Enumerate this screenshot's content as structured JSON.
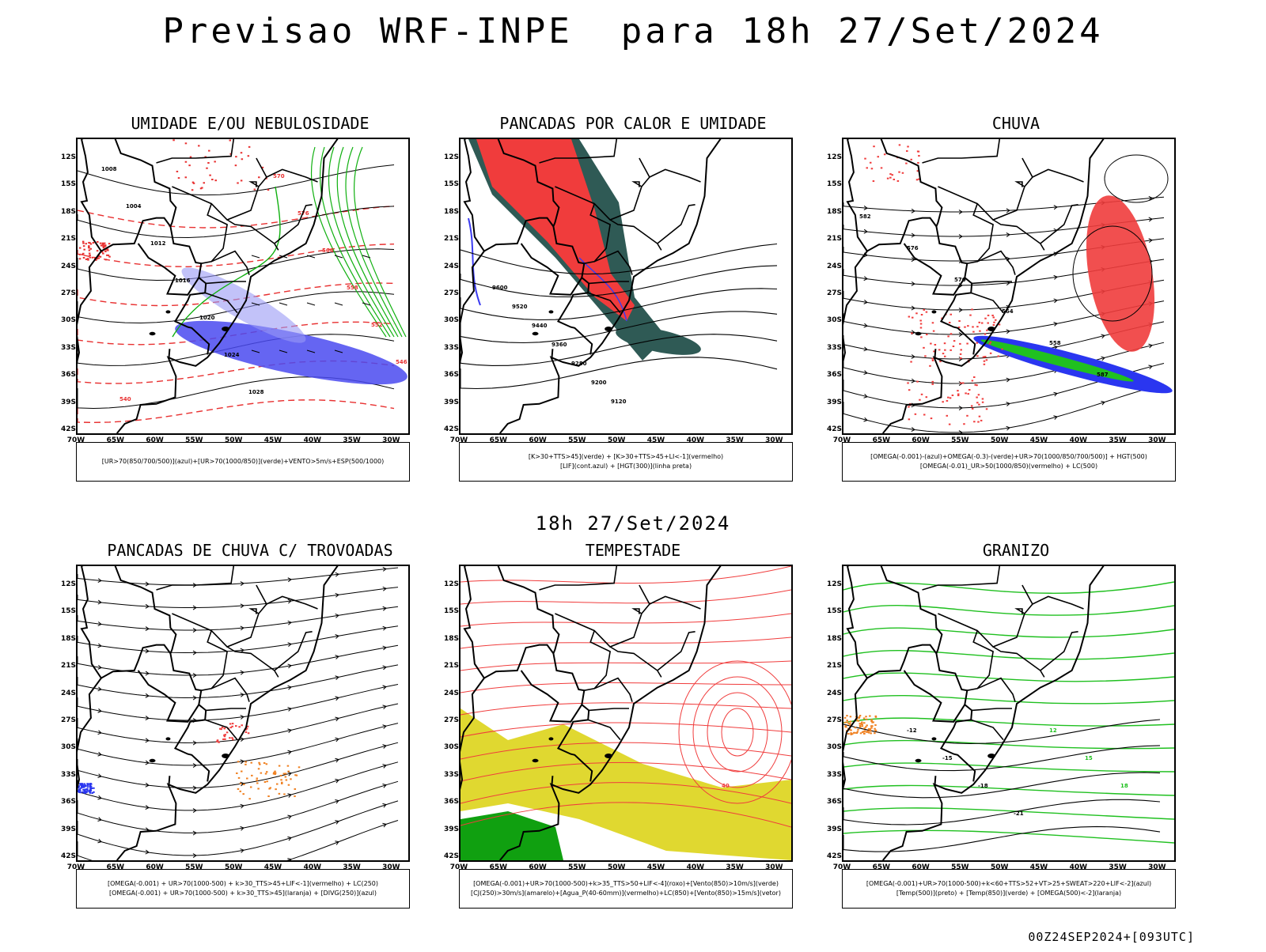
{
  "header": {
    "title": "Previsao WRF-INPE  para 18h 27/Set/2024"
  },
  "mid_title": "18h 27/Set/2024",
  "footer": "00Z24SEP2024+[093UTC]",
  "axes": {
    "lat_labels": [
      "12S",
      "15S",
      "18S",
      "21S",
      "24S",
      "27S",
      "30S",
      "33S",
      "36S",
      "39S",
      "42S"
    ],
    "lon_labels": [
      "70W",
      "65W",
      "60W",
      "55W",
      "50W",
      "45W",
      "40W",
      "35W",
      "30W"
    ]
  },
  "panels": [
    {
      "id": "umidade",
      "title": "UMIDADE E/OU NEBULOSIDADE",
      "legend": [
        "[UR>70(850/700/500)](azul)+[UR>70(1000/850)](verde)+VENTO>5m/s+ESP(500/1000)"
      ],
      "contour_labels": [
        "1008",
        "1004",
        "1012",
        "1016",
        "1020",
        "1024",
        "1028",
        "570",
        "576",
        "564",
        "558",
        "552",
        "546",
        "540"
      ],
      "colors": {
        "uplevel_humidity": "#4a4af0",
        "lowlevel_humidity": "#10b010",
        "thickness": "#e83030"
      }
    },
    {
      "id": "pancadas-calor",
      "title": "PANCADAS POR CALOR E UMIDADE",
      "legend": [
        "[K>30+TTS>45](verde)  +  [K>30+TTS>45+LI<-1](vermelho)",
        "[LIF](cont.azul)  +  [HGT(300)](linha preta)"
      ],
      "contour_labels": [
        "9600",
        "9520",
        "9440",
        "9360",
        "9280",
        "9200",
        "9120"
      ],
      "colors": {
        "k_tts": "#2f5a55",
        "k_tts_li": "#f03c3c",
        "lif": "#3b3bf0"
      }
    },
    {
      "id": "chuva",
      "title": "CHUVA",
      "legend": [
        "[OMEGA(-0.001)-(azul)+OMEGA(-0.3)-(verde)+UR>70(1000/850/700/500)]  +  HGT(500)",
        "[OMEGA(-0.01)_UR>50(1000/850)(vermelho)  +  LC(500)"
      ],
      "contour_labels": [
        "582",
        "576",
        "570",
        "564",
        "558",
        "587"
      ],
      "colors": {
        "omega_blue": "#2a36f0",
        "omega_green": "#20c020",
        "omega_red": "#f03c3c"
      }
    },
    {
      "id": "trovoadas",
      "title": "PANCADAS DE CHUVA C/ TROVOADAS",
      "legend": [
        "[OMEGA(-0.001) + UR>70(1000-500) + k>30_TTS>45+LIF<-1](vermelho) + LC(250)",
        "[OMEGA(-0.001) + UR>70(1000-500) + k>30_TTS>45](laranja) + [DIVG(250)](azul)"
      ],
      "contour_labels": [],
      "colors": {
        "red": "#f03c3c",
        "orange": "#f08020",
        "blue": "#2a36f0"
      }
    },
    {
      "id": "tempestade",
      "title": "TEMPESTADE",
      "legend": [
        "[OMEGA(-0.001)+UR>70(1000-500)+k>35_TTS>50+LIF<-4](roxo)+[Vento(850)>10m/s](verde)",
        "[CJ(250)>30m/s](amarelo)+[Agua_P(40-60mm)](vermelho)+LC(850)+[Vento(850)>15m/s](vetor)"
      ],
      "contour_labels": [
        "40"
      ],
      "colors": {
        "jet": "#e0d830",
        "wind850": "#10a010",
        "water": "#f03c3c"
      }
    },
    {
      "id": "granizo",
      "title": "GRANIZO",
      "legend": [
        "[OMEGA(-0.001)+UR>70(1000-500)+k<60+TTS>52+VT>25+SWEAT>220+LIF<-2](azul)",
        "[Temp(500)](preto)  +  [Temp(850)](verde)  +  [OMEGA(500)<-2](laranja)"
      ],
      "contour_labels": [
        "-12",
        "-15",
        "-18",
        "-21",
        "12",
        "15",
        "18"
      ],
      "colors": {
        "temp500": "#000000",
        "temp850": "#20c020",
        "omega500": "#f08020"
      }
    }
  ]
}
